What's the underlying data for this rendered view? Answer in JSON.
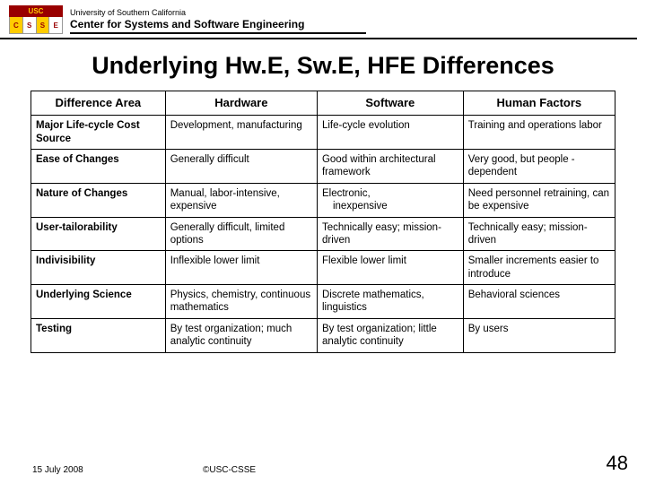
{
  "header": {
    "logo_top": "USC",
    "logo_letters": [
      "C",
      "S",
      "S",
      "E"
    ],
    "university": "University of Southern California",
    "center": "Center for Systems and Software Engineering"
  },
  "title": "Underlying Hw.E, Sw.E, HFE Differences",
  "table": {
    "columns": [
      "Difference Area",
      "Hardware",
      "Software",
      "Human Factors"
    ],
    "rows": [
      [
        "Major Life-cycle Cost Source",
        "Development, manufacturing",
        "Life-cycle evolution",
        "Training and operations labor"
      ],
      [
        "Ease of Changes",
        "Generally difficult",
        "Good within architectural framework",
        "Very good, but people -dependent"
      ],
      [
        "Nature of Changes",
        "Manual, labor-intensive, expensive",
        "Electronic,\n   inexpensive",
        "Need personnel retraining, can be expensive"
      ],
      [
        "User-tailorability",
        "Generally difficult, limited options",
        "Technically easy; mission-driven",
        "Technically easy; mission-driven"
      ],
      [
        "Indivisibility",
        "Inflexible lower limit",
        "Flexible lower limit",
        "Smaller increments easier to introduce"
      ],
      [
        "Underlying Science",
        "Physics, chemistry, continuous mathematics",
        "Discrete mathematics, linguistics",
        "Behavioral sciences"
      ],
      [
        "Testing",
        "By test organization; much analytic continuity",
        "By test organization; little analytic continuity",
        "By users"
      ]
    ]
  },
  "footer": {
    "date": "15 July 2008",
    "copyright": "©USC-CSSE",
    "page": "48"
  },
  "colors": {
    "usc_cardinal": "#990000",
    "usc_gold": "#ffcc00",
    "text": "#000000",
    "background": "#ffffff"
  }
}
